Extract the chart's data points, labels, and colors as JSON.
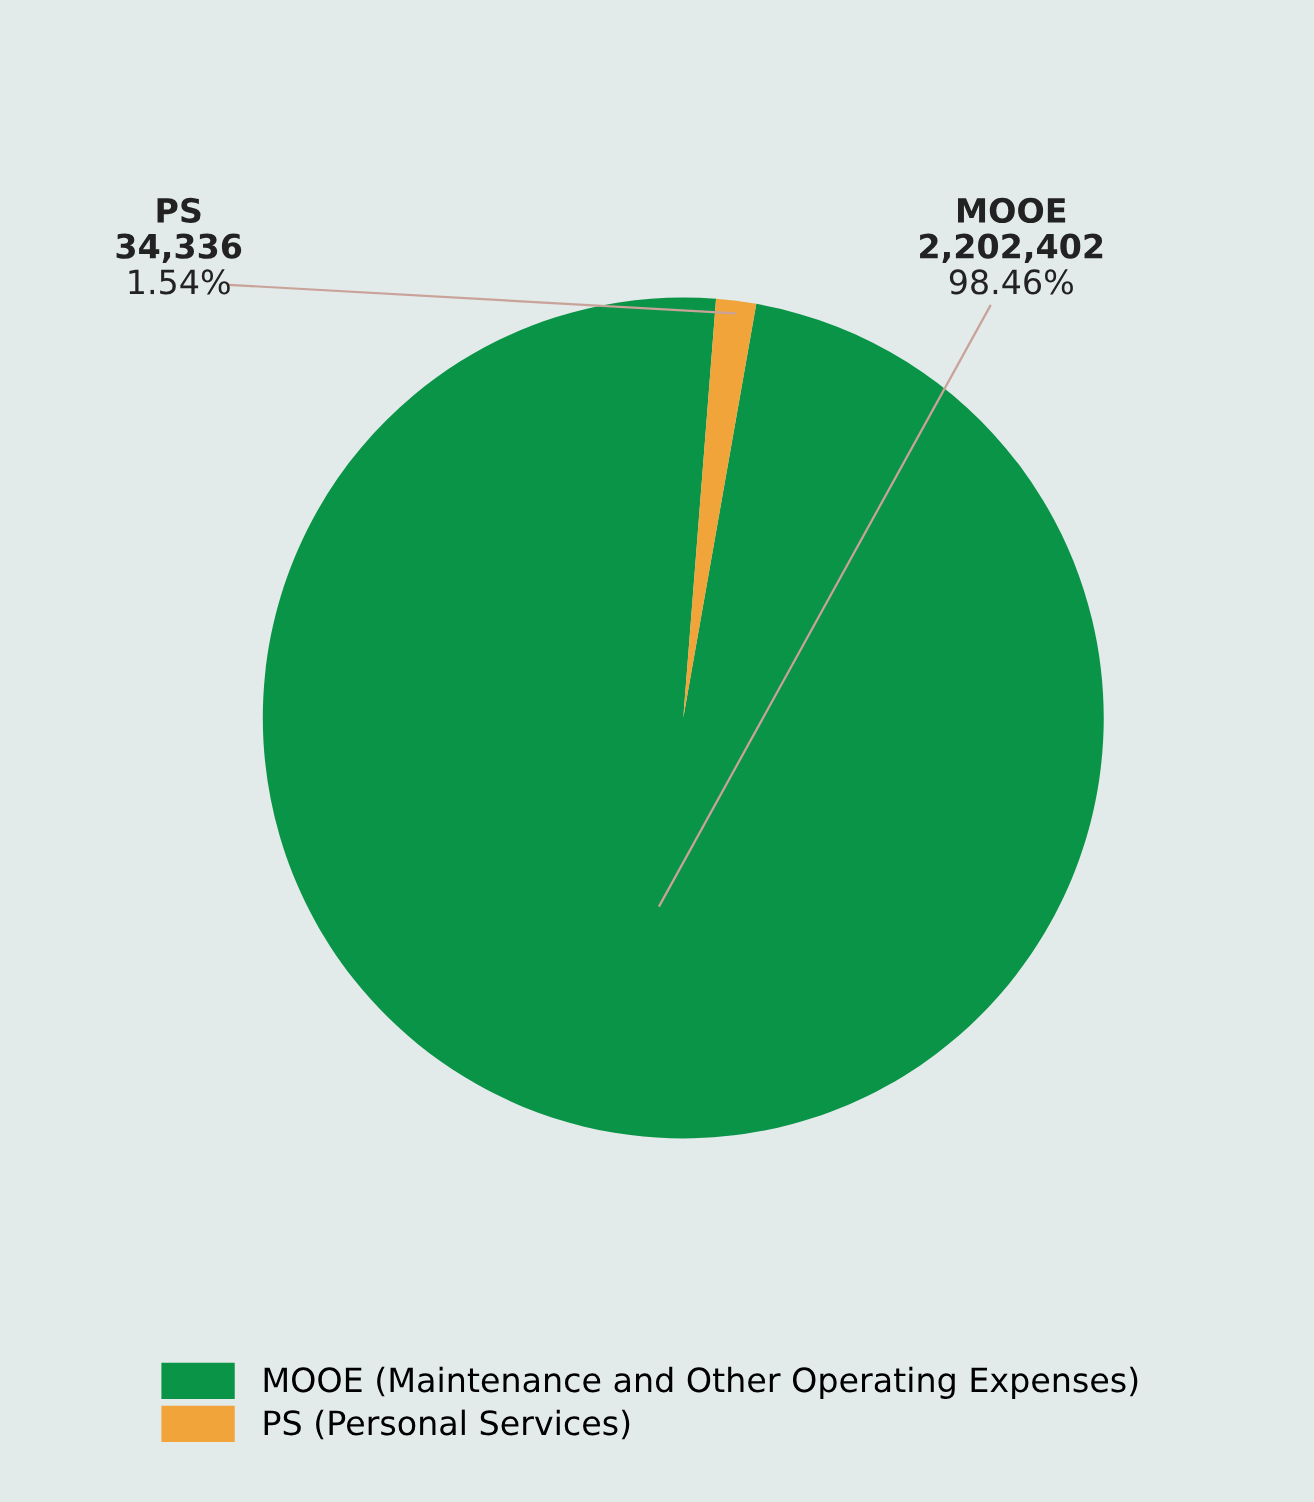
{
  "chart_data": {
    "type": "pie",
    "categories": [
      "MOOE (Maintenance and Other Operating Expenses)",
      "PS (Personal Services)"
    ],
    "values": [
      2202402,
      34336
    ],
    "colors": [
      "#0a9447",
      "#f0a43a"
    ],
    "value_labels": [
      "MOOE\n2,202,402\n98.46%",
      "PS\n34,336\n1.54%"
    ],
    "legend": "bottom"
  }
}
